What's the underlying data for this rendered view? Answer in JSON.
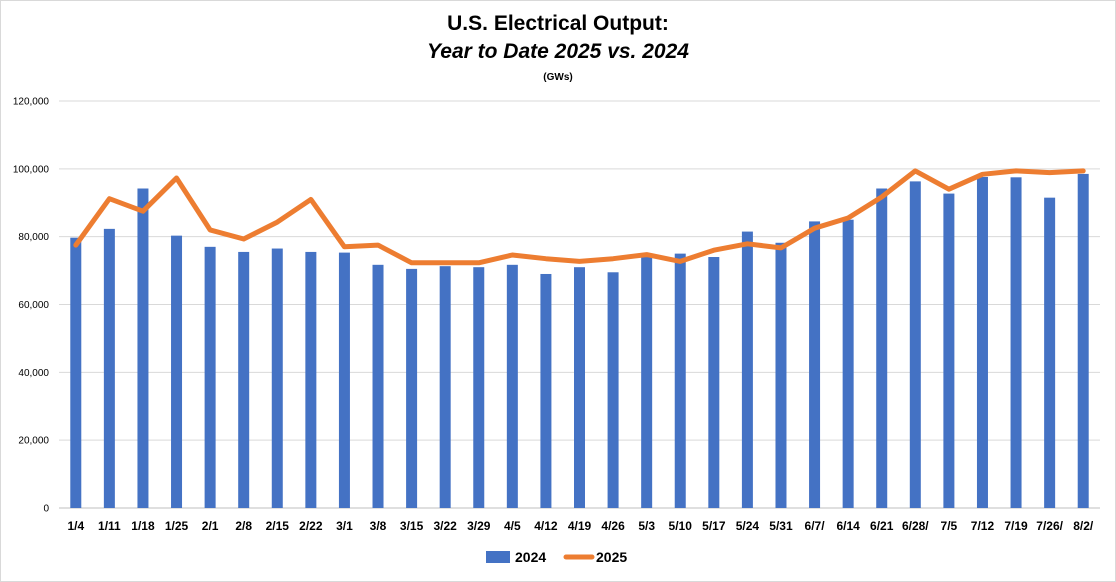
{
  "chart_data": {
    "type": "bar",
    "title": "U.S. Electrical Output:",
    "subtitle": "Year to Date 2025 vs. 2024",
    "unit_label": "(GWs)",
    "categories": [
      "1/4",
      "1/11",
      "1/18",
      "1/25",
      "2/1",
      "2/8",
      "2/15",
      "2/22",
      "3/1",
      "3/8",
      "3/15",
      "3/22",
      "3/29",
      "4/5",
      "4/12",
      "4/19",
      "4/26",
      "5/3",
      "5/10",
      "5/17",
      "5/24",
      "5/31",
      "6/7/",
      "6/14",
      "6/21",
      "6/28/",
      "7/5",
      "7/12",
      "7/19",
      "7/26/",
      "8/2/"
    ],
    "ylim": [
      0,
      120000
    ],
    "yticks": [
      "0",
      "20,000",
      "40,000",
      "60,000",
      "80,000",
      "100,000",
      "120,000"
    ],
    "ytick_values": [
      0,
      20000,
      40000,
      60000,
      80000,
      100000,
      120000
    ],
    "grid": true,
    "legend_position": "bottom",
    "series": [
      {
        "name": "2024",
        "kind": "bar",
        "color": "#4472C4",
        "values": [
          79700,
          82300,
          94200,
          80300,
          77000,
          75500,
          76500,
          75500,
          75300,
          71700,
          70500,
          71300,
          71000,
          71700,
          69000,
          71000,
          69500,
          74000,
          75000,
          74000,
          81500,
          78200,
          84500,
          85000,
          94200,
          96300,
          92700,
          97600,
          97500,
          91500,
          98500
        ]
      },
      {
        "name": "2025",
        "kind": "line",
        "color": "#ED7D31",
        "values": [
          77500,
          91200,
          87500,
          97300,
          82000,
          79300,
          84300,
          91000,
          77000,
          77500,
          72300,
          72300,
          72300,
          74600,
          73500,
          72700,
          73500,
          74700,
          72700,
          76000,
          77900,
          76700,
          82500,
          85500,
          91700,
          99400,
          94000,
          98400,
          99400,
          98900,
          99400
        ]
      }
    ]
  }
}
